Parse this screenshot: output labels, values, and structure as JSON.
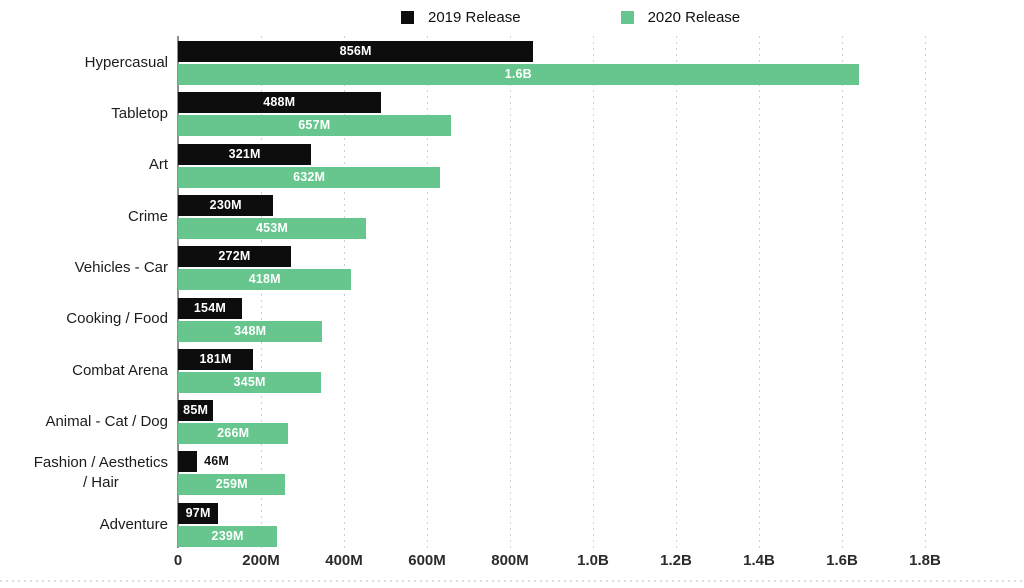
{
  "legend": {
    "items": [
      {
        "label": "2019 Release",
        "color": "#0d0d0d"
      },
      {
        "label": "2020 Release",
        "color": "#66c68d"
      }
    ]
  },
  "chart_data": {
    "type": "bar",
    "orientation": "horizontal",
    "title": "",
    "xlabel": "",
    "ylabel": "",
    "legend_position": "top",
    "grid": "vertical-dotted",
    "categories": [
      "Hypercasual",
      "Tabletop",
      "Art",
      "Crime",
      "Vehicles - Car",
      "Cooking / Food",
      "Combat Arena",
      "Animal - Cat / Dog",
      "Fashion / Aesthetics\n/ Hair",
      "Adventure"
    ],
    "series": [
      {
        "name": "2019 Release",
        "color": "#0d0d0d",
        "values_millions": [
          856,
          488,
          321,
          230,
          272,
          154,
          181,
          85,
          46,
          97
        ],
        "labels": [
          "856M",
          "488M",
          "321M",
          "230M",
          "272M",
          "154M",
          "181M",
          "85M",
          "46M",
          "97M"
        ],
        "label_inside": [
          true,
          true,
          true,
          true,
          true,
          true,
          true,
          true,
          false,
          true
        ]
      },
      {
        "name": "2020 Release",
        "color": "#66c68d",
        "values_millions": [
          1640,
          657,
          632,
          453,
          418,
          348,
          345,
          266,
          259,
          239
        ],
        "labels": [
          "1.6B",
          "657M",
          "632M",
          "453M",
          "418M",
          "348M",
          "345M",
          "266M",
          "259M",
          "239M"
        ],
        "label_inside": [
          true,
          true,
          true,
          true,
          true,
          true,
          true,
          true,
          true,
          true
        ]
      }
    ],
    "x_axis": {
      "max_millions": 1800,
      "tick_values_millions": [
        0,
        200,
        400,
        600,
        800,
        1000,
        1200,
        1400,
        1600,
        1800
      ],
      "ticks": [
        "0",
        "200M",
        "400M",
        "600M",
        "800M",
        "1.0B",
        "1.2B",
        "1.4B",
        "1.6B",
        "1.8B"
      ]
    }
  }
}
